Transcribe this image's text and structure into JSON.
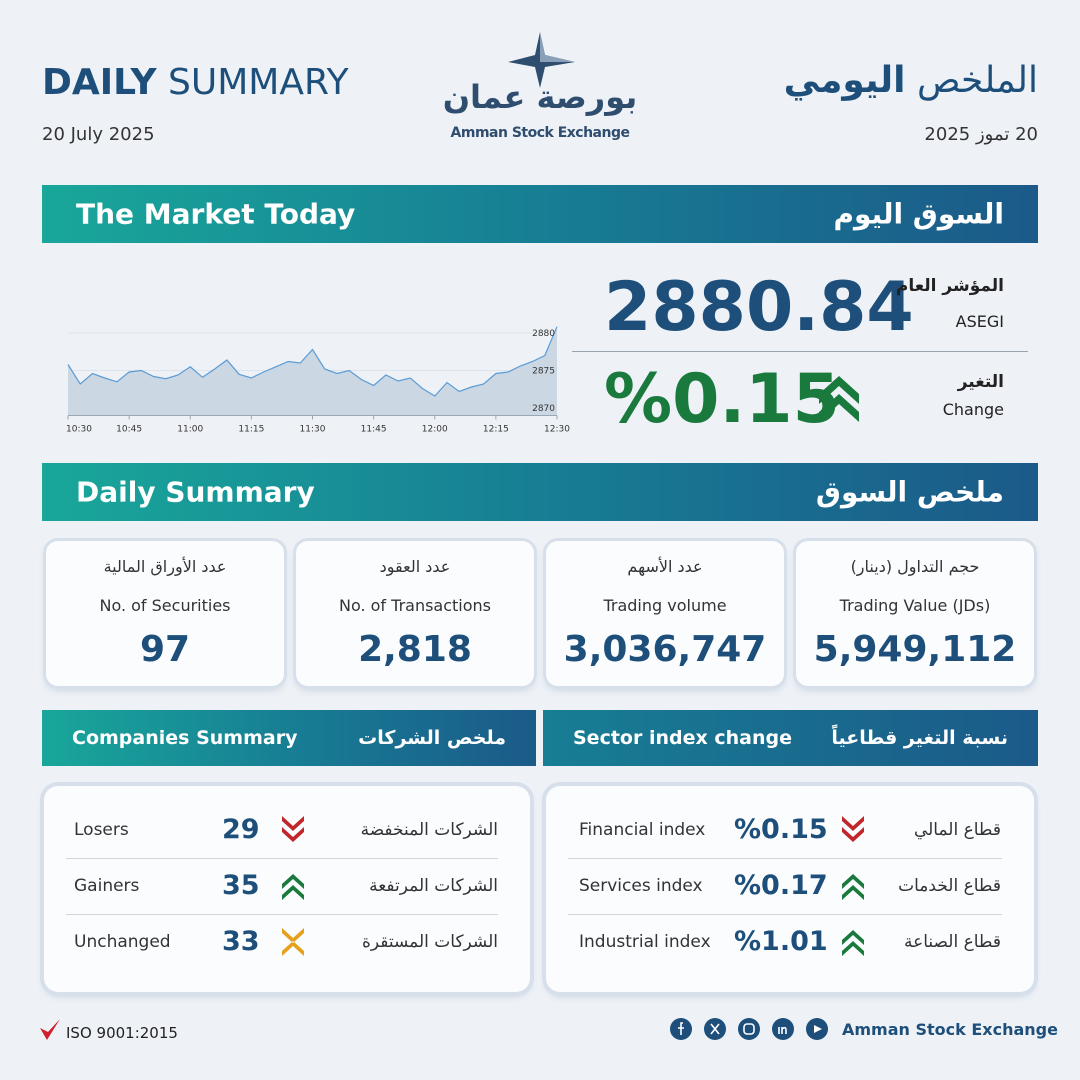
{
  "header": {
    "title_bold": "DAILY",
    "title_rest": "SUMMARY",
    "date": "20 July 2025",
    "title_ar_rest": "الملخص",
    "title_ar_bold": "اليومي",
    "date_ar": "20 تموز 2025",
    "logo_ar": "بورصة عمان",
    "logo_en": "Amman Stock Exchange"
  },
  "market_today": {
    "title_en": "The Market Today",
    "title_ar": "السوق اليوم",
    "index_label_ar": "المؤشر العام",
    "index_label_en": "ASEGI",
    "index_value": "2880.84",
    "change_label_ar": "التغير",
    "change_label_en": "Change",
    "change_value": "%0.15"
  },
  "chart_data": {
    "type": "line",
    "categories": [
      "10:30",
      null,
      null,
      null,
      null,
      "10:45",
      null,
      null,
      null,
      null,
      "11:00",
      null,
      null,
      null,
      null,
      "11:15",
      null,
      null,
      null,
      null,
      "11:30",
      null,
      null,
      null,
      null,
      "11:45",
      null,
      null,
      null,
      null,
      "12:00",
      null,
      null,
      null,
      null,
      "12:15",
      null,
      null,
      null,
      null,
      "12:30"
    ],
    "values": [
      2875.8,
      2873.2,
      2874.6,
      2874.0,
      2873.5,
      2874.8,
      2875.0,
      2874.2,
      2873.9,
      2874.4,
      2875.5,
      2874.1,
      2875.2,
      2876.4,
      2874.5,
      2874.0,
      2874.8,
      2875.5,
      2876.2,
      2876.0,
      2877.8,
      2875.2,
      2874.6,
      2875.0,
      2873.8,
      2873.0,
      2874.4,
      2873.6,
      2874.0,
      2872.6,
      2871.6,
      2873.4,
      2872.2,
      2872.8,
      2873.2,
      2874.6,
      2874.8,
      2875.6,
      2876.2,
      2877.0,
      2880.84
    ],
    "color": "#5b9bd5",
    "fill": "#cbd7e3",
    "ylim": [
      2869,
      2881
    ],
    "yticks": [
      2870,
      2875,
      2880
    ],
    "grid": true
  },
  "daily_summary": {
    "title_en": "Daily Summary",
    "title_ar": "ملخص السوق",
    "cards": [
      {
        "label_ar": "عدد الأوراق المالية",
        "label_en": "No. of Securities",
        "value": "97"
      },
      {
        "label_ar": "عدد العقود",
        "label_en": "No. of Transactions",
        "value": "2,818"
      },
      {
        "label_ar": "عدد الأسهم",
        "label_en": "Trading volume",
        "value": "3,036,747"
      },
      {
        "label_ar": "حجم التداول (دينار)",
        "label_en": "Trading Value (JDs)",
        "value": "5,949,112"
      }
    ]
  },
  "companies": {
    "title_en": "Companies Summary",
    "title_ar": "ملخص الشركات",
    "rows": [
      {
        "label_en": "Losers",
        "value": "29",
        "label_ar": "الشركات المنخفضة"
      },
      {
        "label_en": "Gainers",
        "value": "35",
        "label_ar": "الشركات المرتفعة"
      },
      {
        "label_en": "Unchanged",
        "value": "33",
        "label_ar": "الشركات المستقرة"
      }
    ]
  },
  "sectors": {
    "title_en": "Sector index change",
    "title_ar": "نسبة التغير قطاعياً",
    "rows": [
      {
        "label_en": "Financial index",
        "value": "%0.15",
        "label_ar": "قطاع المالي"
      },
      {
        "label_en": "Services index",
        "value": "%0.17",
        "label_ar": "قطاع الخدمات"
      },
      {
        "label_en": "Industrial index",
        "value": "%1.01",
        "label_ar": "قطاع الصناعة"
      }
    ]
  },
  "footer": {
    "iso": "ISO 9001:2015",
    "brand": "Amman Stock Exchange"
  }
}
